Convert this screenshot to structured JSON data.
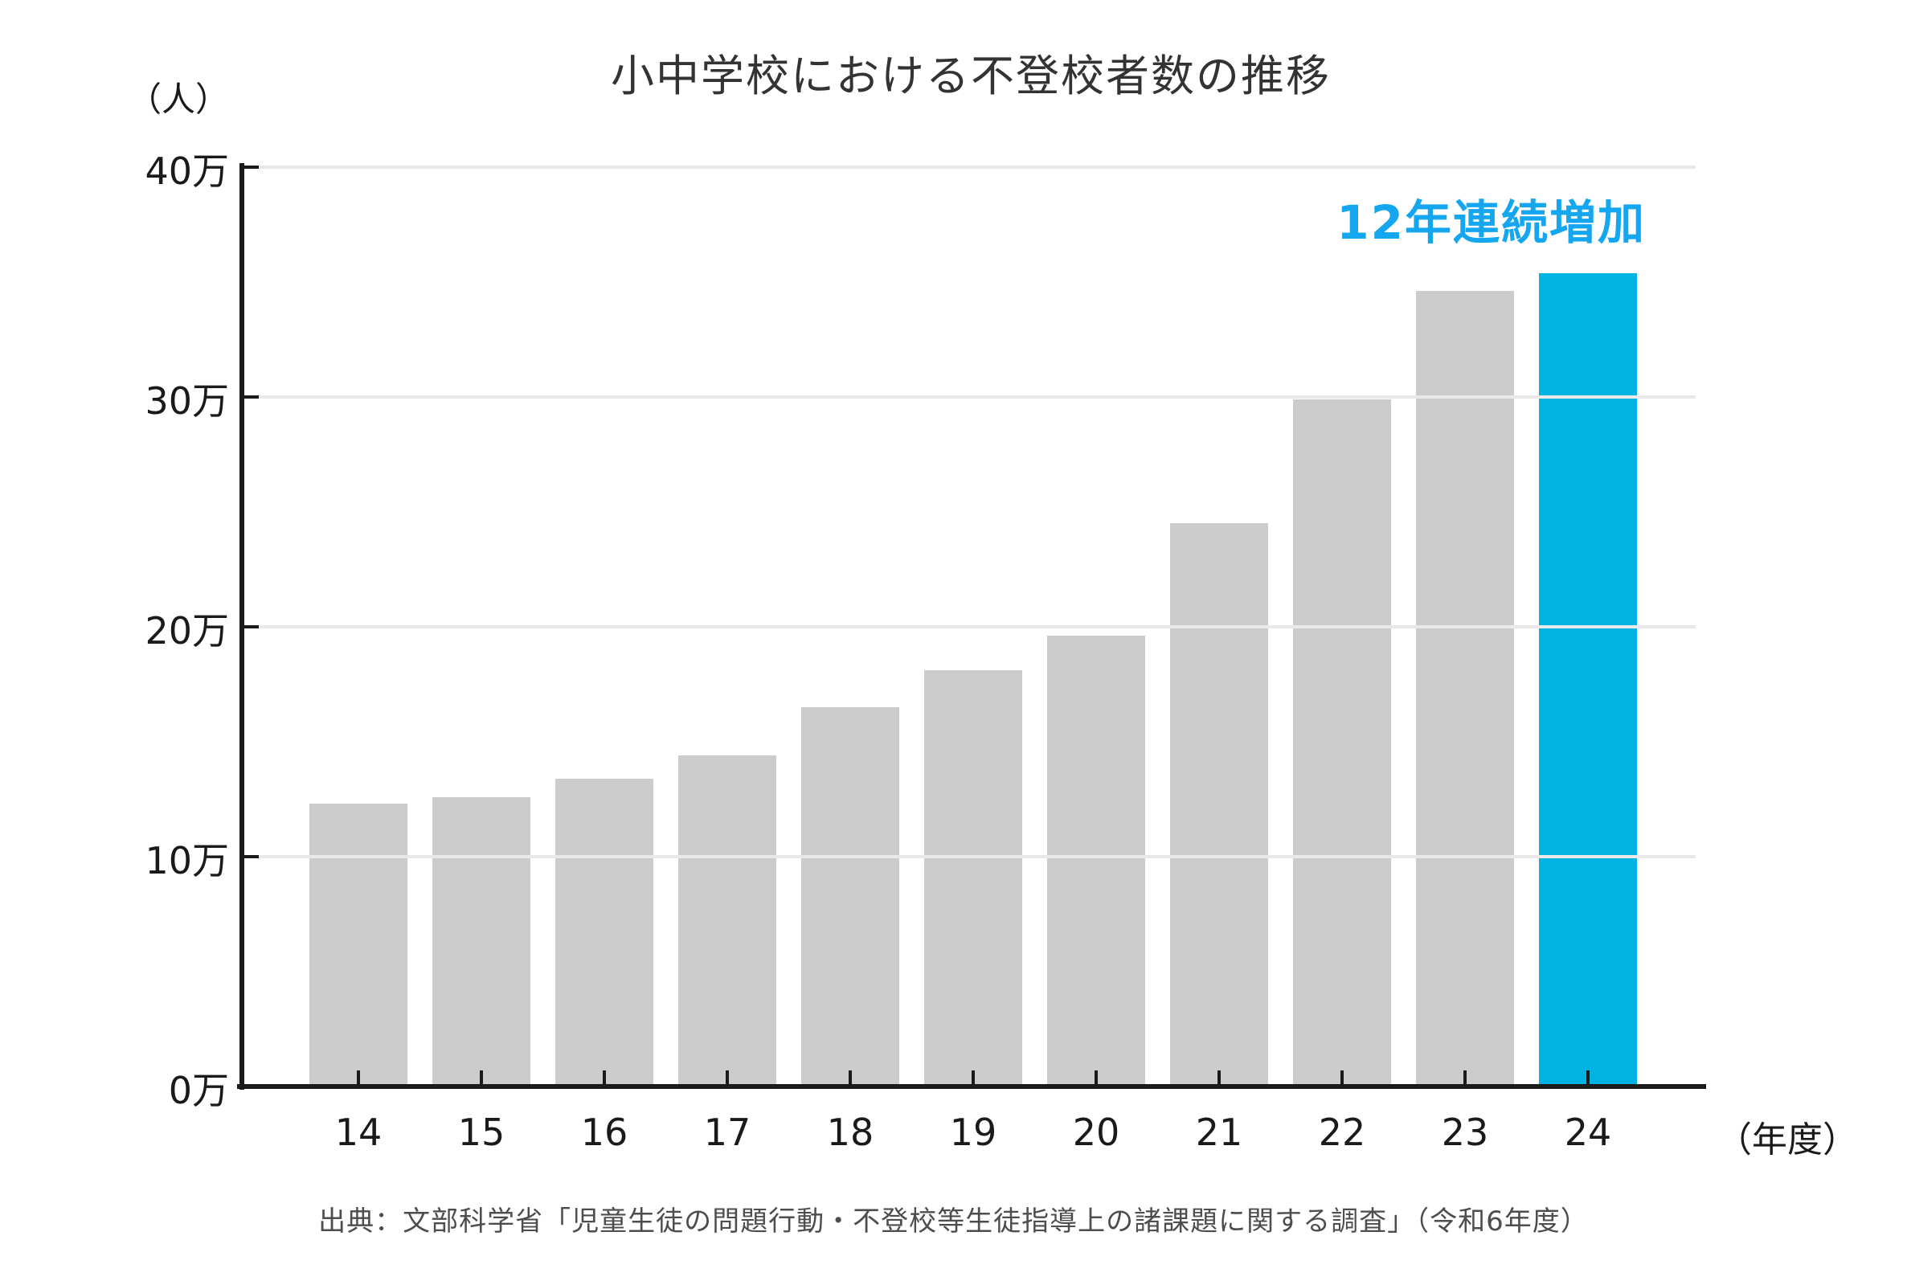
{
  "title": "小中学校における不登校者数の推移",
  "y_axis_unit_label": "（人）",
  "x_axis_unit_label": "（年度）",
  "annotation": {
    "text": "12年連続増加",
    "color": "#14a6ef"
  },
  "source_caption": "出典：文部科学省「児童生徒の問題行動・不登校等生徒指導上の諸課題に関する調査」（令和6年度）",
  "colors": {
    "bar": "#cccccc",
    "highlight_bar": "#00b3e3",
    "grid": "#e9e9e9",
    "axis": "#1a1a1a",
    "title": "#333333",
    "source": "#4d4d4d"
  },
  "chart_data": {
    "type": "bar",
    "title": "小中学校における不登校者数の推移",
    "categories": [
      "14",
      "15",
      "16",
      "17",
      "18",
      "19",
      "20",
      "21",
      "22",
      "23",
      "24"
    ],
    "values": [
      12.3,
      12.6,
      13.4,
      14.4,
      16.5,
      18.1,
      19.6,
      24.5,
      29.9,
      34.6,
      35.4
    ],
    "value_unit": "万人",
    "xlabel": "（年度）",
    "ylabel": "（人）",
    "ylim": [
      0,
      40
    ],
    "y_tick_step": 10,
    "y_tick_suffix": "万",
    "y_tick_labels": [
      "0万",
      "10万",
      "20万",
      "30万",
      "40万"
    ],
    "grid": true,
    "legend": false,
    "highlight_index": 10,
    "annotation": "12年連続増加"
  }
}
